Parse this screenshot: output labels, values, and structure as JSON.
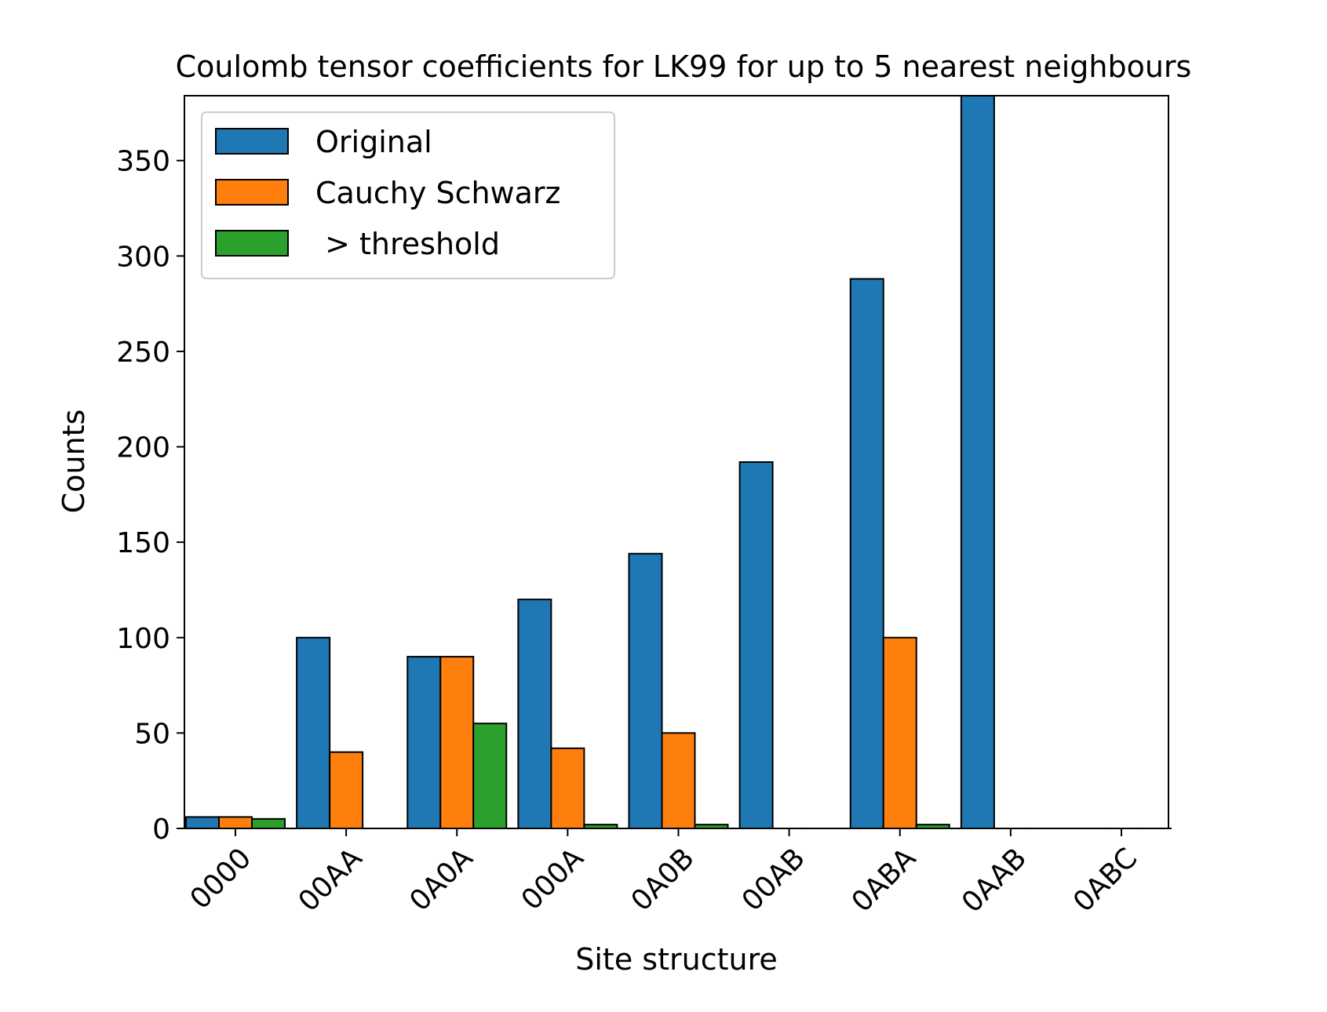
{
  "chart_data": {
    "type": "bar",
    "title": "Coulomb tensor coefficients for LK99 for up to 5 nearest neighbours",
    "xlabel": "Site structure",
    "ylabel": "Counts",
    "categories": [
      "0000",
      "00AA",
      "0A0A",
      "000A",
      "0A0B",
      "00AB",
      "0ABA",
      "0AAB",
      "0ABC"
    ],
    "series": [
      {
        "name": "Original",
        "color": "#1f77b4",
        "values": [
          6,
          100,
          90,
          120,
          144,
          192,
          288,
          384,
          0
        ]
      },
      {
        "name": "Cauchy Schwarz",
        "color": "#ff7f0e",
        "values": [
          6,
          40,
          90,
          42,
          50,
          0,
          100,
          0,
          0
        ]
      },
      {
        "name": " > threshold",
        "color": "#2ca02c",
        "values": [
          5,
          0,
          55,
          2,
          2,
          0,
          2,
          0,
          0
        ]
      }
    ],
    "ylim": [
      0,
      384
    ],
    "yticks": [
      0,
      50,
      100,
      150,
      200,
      250,
      300,
      350
    ],
    "legend_position": "upper-left",
    "grid": false
  }
}
